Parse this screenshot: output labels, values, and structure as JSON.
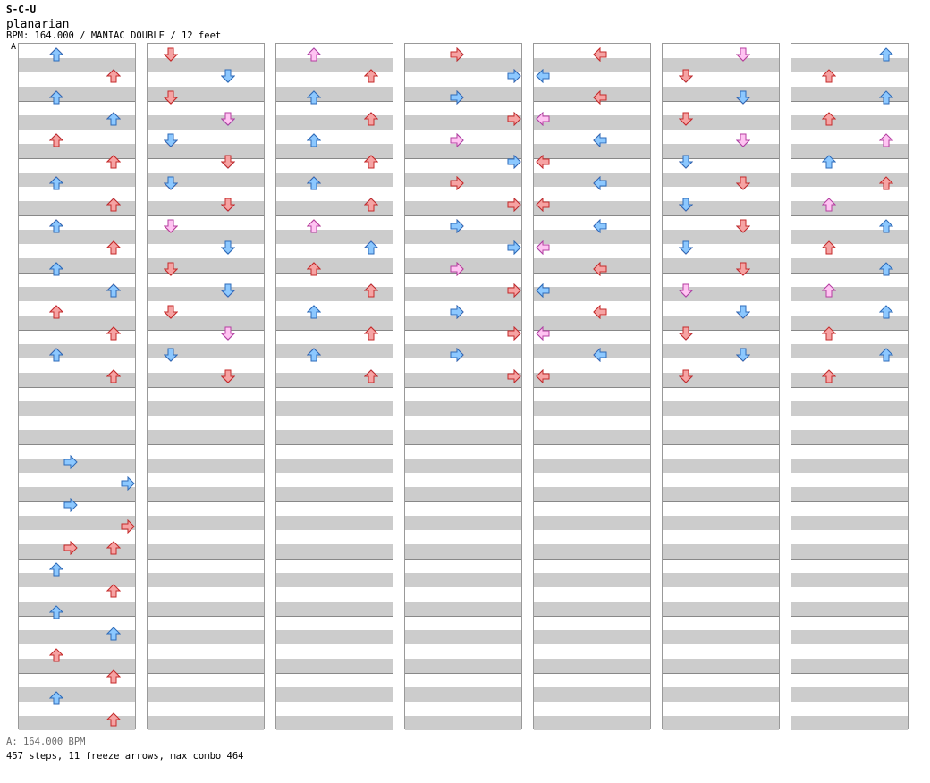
{
  "header": {
    "site": "S-C-U",
    "song_title": "planarian",
    "chart_info": "BPM: 164.000 / MANIAC DOUBLE / 12 feet",
    "bpm_marker": "A"
  },
  "footer": {
    "bpm_line": "A: 164.000 BPM",
    "stats": "457 steps, 11 freeze arrows, max combo 464"
  },
  "colors": {
    "stripe": "#cccccc",
    "border": "#999999",
    "note_red": "#f6a3a3",
    "note_red_stroke": "#c42a2a",
    "note_blue": "#8cc8ff",
    "note_blue_stroke": "#2d6ab8",
    "note_pink": "#ffc4f2",
    "note_pink_stroke": "#b43ea0",
    "freeze_fill": "#ccf5cc",
    "freeze_stroke": "#2e8b2e"
  },
  "columns": [
    {
      "notes": [
        [
          15,
          19,
          "blue"
        ],
        [
          15,
          20,
          "blue"
        ],
        [
          15,
          21,
          "blue"
        ],
        [
          15,
          22,
          "red"
        ],
        [
          15,
          23,
          "red"
        ],
        [
          16,
          23,
          "red"
        ],
        [
          16,
          24,
          "blue"
        ],
        [
          16,
          25,
          "red"
        ],
        [
          16,
          26,
          "blue"
        ],
        [
          16,
          27,
          "blue"
        ],
        [
          16,
          28,
          "red"
        ],
        [
          16,
          29,
          "red"
        ],
        [
          16,
          30,
          "blue"
        ],
        [
          16,
          31,
          "red"
        ],
        [
          17,
          0,
          "red"
        ],
        [
          17,
          1,
          "blue"
        ],
        [
          17,
          2,
          "red"
        ],
        [
          17,
          3,
          "red"
        ],
        [
          17,
          4,
          "blue"
        ],
        [
          17,
          5,
          "red"
        ],
        [
          17,
          6,
          "red"
        ],
        [
          17,
          7,
          "blue"
        ],
        [
          17,
          8,
          "red"
        ],
        [
          17,
          9,
          "red"
        ],
        [
          17,
          10,
          "blue"
        ],
        [
          17,
          11,
          "red"
        ],
        [
          17,
          12,
          "pink"
        ],
        [
          17,
          13,
          "red"
        ],
        [
          17,
          14,
          "red"
        ],
        [
          17,
          15,
          "red"
        ],
        [
          18,
          0,
          "blue"
        ],
        [
          18,
          1,
          "red"
        ],
        [
          18,
          2,
          "blue"
        ],
        [
          18,
          3,
          "blue"
        ],
        [
          18,
          4,
          "red"
        ],
        [
          18,
          5,
          "red"
        ],
        [
          18,
          6,
          "blue"
        ],
        [
          18,
          7,
          "red"
        ],
        [
          18,
          8,
          "blue"
        ],
        [
          18,
          9,
          "red"
        ],
        [
          18,
          10,
          "blue"
        ],
        [
          18,
          11,
          "blue"
        ],
        [
          18,
          12,
          "red"
        ],
        [
          18,
          13,
          "red"
        ],
        [
          18,
          14,
          "blue"
        ],
        [
          18,
          15,
          "red"
        ]
      ],
      "freezes": []
    },
    {
      "notes": [
        [
          1,
          0,
          "red"
        ],
        [
          1,
          1,
          "blue"
        ],
        [
          1,
          2,
          "red"
        ],
        [
          1,
          3,
          "blue"
        ],
        [
          1,
          4,
          "red"
        ],
        [
          1,
          5,
          "blue"
        ],
        [
          1,
          6,
          "red"
        ],
        [
          1,
          7,
          "blue"
        ],
        [
          1,
          8,
          "red"
        ],
        [
          1,
          9,
          "blue"
        ],
        [
          1,
          10,
          "red"
        ],
        [
          1,
          11,
          "blue"
        ],
        [
          1,
          12,
          "red"
        ],
        [
          1,
          13,
          "blue"
        ],
        [
          1,
          14,
          "red"
        ],
        [
          1,
          15,
          "blue"
        ],
        [
          2,
          0,
          "red"
        ],
        [
          2,
          1,
          "blue"
        ],
        [
          2,
          2,
          "red"
        ],
        [
          2,
          3,
          "blue"
        ],
        [
          2,
          4,
          "red"
        ],
        [
          2,
          5,
          "blue"
        ],
        [
          2,
          6,
          "red"
        ],
        [
          2,
          7,
          "pink"
        ],
        [
          2,
          8,
          "red"
        ],
        [
          2,
          9,
          "blue"
        ],
        [
          2,
          10,
          "red"
        ],
        [
          2,
          11,
          "pink"
        ],
        [
          2,
          12,
          "red"
        ],
        [
          2,
          13,
          "pink"
        ],
        [
          2,
          14,
          "blue"
        ],
        [
          2,
          15,
          "red"
        ],
        [
          3,
          0,
          "red"
        ],
        [
          3,
          1,
          "blue"
        ],
        [
          3,
          2,
          "red"
        ],
        [
          3,
          3,
          "pink"
        ],
        [
          3,
          4,
          "blue"
        ],
        [
          3,
          5,
          "red"
        ],
        [
          3,
          6,
          "blue"
        ],
        [
          3,
          7,
          "red"
        ],
        [
          3,
          8,
          "pink"
        ],
        [
          3,
          9,
          "blue"
        ],
        [
          3,
          10,
          "red"
        ],
        [
          3,
          11,
          "blue"
        ],
        [
          3,
          12,
          "red"
        ],
        [
          3,
          13,
          "pink"
        ],
        [
          3,
          14,
          "blue"
        ],
        [
          3,
          15,
          "red"
        ]
      ],
      "freezes": []
    },
    {
      "notes": [
        [
          4,
          0,
          "blue"
        ],
        [
          4,
          1,
          "red"
        ],
        [
          4,
          2,
          "blue"
        ],
        [
          4,
          3,
          "pink"
        ],
        [
          4,
          4,
          "blue"
        ],
        [
          4,
          5,
          "red"
        ],
        [
          4,
          6,
          "red"
        ],
        [
          4,
          7,
          "blue"
        ],
        [
          4,
          8,
          "red"
        ],
        [
          4,
          9,
          "pink"
        ],
        [
          4,
          10,
          "red"
        ],
        [
          4,
          11,
          "blue"
        ],
        [
          4,
          12,
          "blue"
        ],
        [
          4,
          13,
          "red"
        ],
        [
          4,
          14,
          "red"
        ],
        [
          4,
          15,
          "blue"
        ],
        [
          5,
          0,
          "pink"
        ],
        [
          5,
          1,
          "red"
        ],
        [
          5,
          2,
          "blue"
        ],
        [
          5,
          3,
          "red"
        ],
        [
          5,
          4,
          "blue"
        ],
        [
          5,
          5,
          "red"
        ],
        [
          5,
          6,
          "blue"
        ],
        [
          5,
          7,
          "red"
        ],
        [
          5,
          8,
          "pink"
        ],
        [
          5,
          9,
          "blue"
        ],
        [
          5,
          10,
          "red"
        ],
        [
          5,
          11,
          "red"
        ],
        [
          5,
          12,
          "blue"
        ],
        [
          5,
          13,
          "red"
        ],
        [
          5,
          14,
          "blue"
        ],
        [
          5,
          15,
          "red"
        ]
      ],
      "freezes": []
    },
    {
      "notes": [
        [
          6,
          0,
          "blue"
        ],
        [
          6,
          1,
          "red"
        ],
        [
          6,
          2,
          "red"
        ],
        [
          6,
          3,
          "blue"
        ],
        [
          6,
          4,
          "blue"
        ],
        [
          6,
          5,
          "pink"
        ],
        [
          6,
          6,
          "red"
        ],
        [
          6,
          7,
          "blue"
        ],
        [
          6,
          8,
          "red"
        ],
        [
          6,
          9,
          "blue"
        ],
        [
          6,
          10,
          "red"
        ],
        [
          6,
          11,
          "blue"
        ],
        [
          6,
          12,
          "red"
        ],
        [
          6,
          13,
          "pink"
        ],
        [
          6,
          14,
          "red"
        ],
        [
          6,
          15,
          "blue"
        ],
        [
          7,
          0,
          "red"
        ],
        [
          7,
          1,
          "blue"
        ],
        [
          7,
          2,
          "blue"
        ],
        [
          7,
          3,
          "red"
        ],
        [
          7,
          4,
          "pink"
        ],
        [
          7,
          5,
          "blue"
        ],
        [
          7,
          6,
          "red"
        ],
        [
          7,
          7,
          "red"
        ],
        [
          7,
          8,
          "blue"
        ],
        [
          7,
          9,
          "blue"
        ],
        [
          7,
          10,
          "pink"
        ],
        [
          7,
          11,
          "red"
        ],
        [
          7,
          12,
          "blue"
        ],
        [
          7,
          13,
          "red"
        ],
        [
          7,
          14,
          "blue"
        ],
        [
          7,
          15,
          "red"
        ]
      ],
      "freezes": []
    },
    {
      "notes": [
        [
          8,
          0,
          "red"
        ],
        [
          8,
          1,
          "blue"
        ],
        [
          8,
          2,
          "red"
        ],
        [
          8,
          3,
          "blue"
        ],
        [
          8,
          4,
          "red"
        ],
        [
          8,
          5,
          "pink"
        ],
        [
          8,
          6,
          "red"
        ],
        [
          8,
          7,
          "blue"
        ],
        [
          8,
          8,
          "pink"
        ],
        [
          8,
          9,
          "blue"
        ],
        [
          8,
          10,
          "red"
        ],
        [
          8,
          11,
          "blue"
        ],
        [
          8,
          12,
          "red"
        ],
        [
          8,
          13,
          "blue"
        ],
        [
          8,
          14,
          "pink"
        ],
        [
          8,
          15,
          "blue"
        ],
        [
          9,
          0,
          "red"
        ],
        [
          9,
          1,
          "blue"
        ],
        [
          9,
          2,
          "red"
        ],
        [
          9,
          3,
          "pink"
        ],
        [
          9,
          4,
          "blue"
        ],
        [
          9,
          5,
          "red"
        ],
        [
          9,
          6,
          "blue"
        ],
        [
          9,
          7,
          "red"
        ],
        [
          9,
          8,
          "blue"
        ],
        [
          9,
          9,
          "pink"
        ],
        [
          9,
          10,
          "red"
        ],
        [
          9,
          11,
          "blue"
        ],
        [
          9,
          12,
          "red"
        ],
        [
          9,
          13,
          "pink"
        ],
        [
          9,
          14,
          "blue"
        ],
        [
          9,
          15,
          "red"
        ]
      ],
      "freezes": []
    },
    {
      "notes": [
        [
          10,
          0,
          "red"
        ],
        [
          10,
          1,
          "blue"
        ],
        [
          10,
          2,
          "red"
        ],
        [
          10,
          3,
          "pink"
        ],
        [
          10,
          4,
          "blue"
        ],
        [
          10,
          5,
          "red"
        ],
        [
          10,
          6,
          "blue"
        ],
        [
          10,
          7,
          "red"
        ],
        [
          10,
          8,
          "blue"
        ],
        [
          10,
          9,
          "red"
        ],
        [
          10,
          10,
          "pink"
        ],
        [
          10,
          11,
          "blue"
        ],
        [
          10,
          12,
          "red"
        ],
        [
          10,
          13,
          "blue"
        ],
        [
          10,
          14,
          "red"
        ],
        [
          10,
          15,
          "blue"
        ],
        [
          11,
          0,
          "pink"
        ],
        [
          11,
          1,
          "red"
        ],
        [
          11,
          2,
          "blue"
        ],
        [
          11,
          3,
          "red"
        ],
        [
          11,
          4,
          "pink"
        ],
        [
          11,
          5,
          "blue"
        ],
        [
          11,
          6,
          "red"
        ],
        [
          11,
          7,
          "blue"
        ],
        [
          11,
          8,
          "red"
        ],
        [
          11,
          9,
          "blue"
        ],
        [
          11,
          10,
          "red"
        ],
        [
          11,
          11,
          "pink"
        ],
        [
          11,
          12,
          "blue"
        ],
        [
          11,
          13,
          "red"
        ],
        [
          11,
          14,
          "blue"
        ],
        [
          11,
          15,
          "red"
        ]
      ],
      "freezes": []
    },
    {
      "notes": [
        [
          12,
          0,
          "blue"
        ],
        [
          12,
          1,
          "red"
        ],
        [
          12,
          2,
          "blue"
        ],
        [
          12,
          3,
          "red"
        ],
        [
          12,
          4,
          "pink"
        ],
        [
          12,
          5,
          "blue"
        ],
        [
          12,
          6,
          "red"
        ],
        [
          12,
          7,
          "pink"
        ],
        [
          12,
          8,
          "blue"
        ],
        [
          12,
          9,
          "red"
        ],
        [
          12,
          10,
          "blue"
        ],
        [
          12,
          11,
          "pink"
        ],
        [
          12,
          12,
          "blue"
        ],
        [
          12,
          13,
          "red"
        ],
        [
          12,
          14,
          "blue"
        ],
        [
          12,
          15,
          "red"
        ]
      ],
      "freezes": []
    }
  ]
}
